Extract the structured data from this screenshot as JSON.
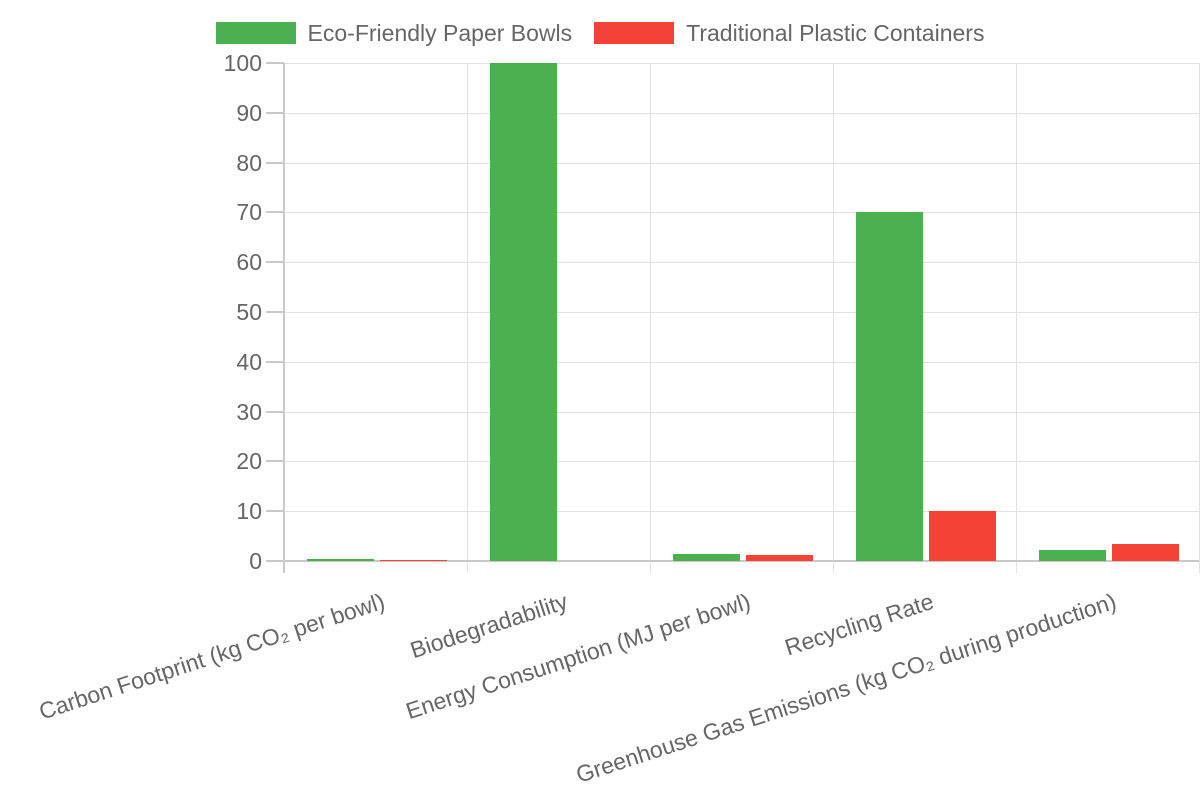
{
  "legend": {
    "items": [
      {
        "label": "Eco-Friendly Paper Bowls",
        "color": "#4caf50"
      },
      {
        "label": "Traditional Plastic Containers",
        "color": "#f44336"
      }
    ]
  },
  "chart_data": {
    "type": "bar",
    "title": "",
    "xlabel": "",
    "ylabel": "",
    "categories": [
      "Carbon Footprint (kg CO₂ per bowl)",
      "Biodegradability",
      "Energy Consumption (MJ per bowl)",
      "Recycling Rate",
      "Greenhouse Gas Emissions (kg CO₂ during production)"
    ],
    "series": [
      {
        "name": "Eco-Friendly Paper Bowls",
        "color": "#4caf50",
        "values": [
          0.5,
          100,
          1.5,
          70,
          2.2
        ]
      },
      {
        "name": "Traditional Plastic Containers",
        "color": "#f44336",
        "values": [
          0.25,
          0,
          1.2,
          10,
          3.5
        ]
      }
    ],
    "ylim": [
      0,
      100
    ],
    "yticks": [
      0,
      10,
      20,
      30,
      40,
      50,
      60,
      70,
      80,
      90,
      100
    ],
    "grid": true,
    "legend_position": "top",
    "x_tick_rotation_deg": -18,
    "colors": {
      "text": "#666666",
      "grid": "#e2e2e2",
      "axis": "#c9c9c9"
    }
  }
}
